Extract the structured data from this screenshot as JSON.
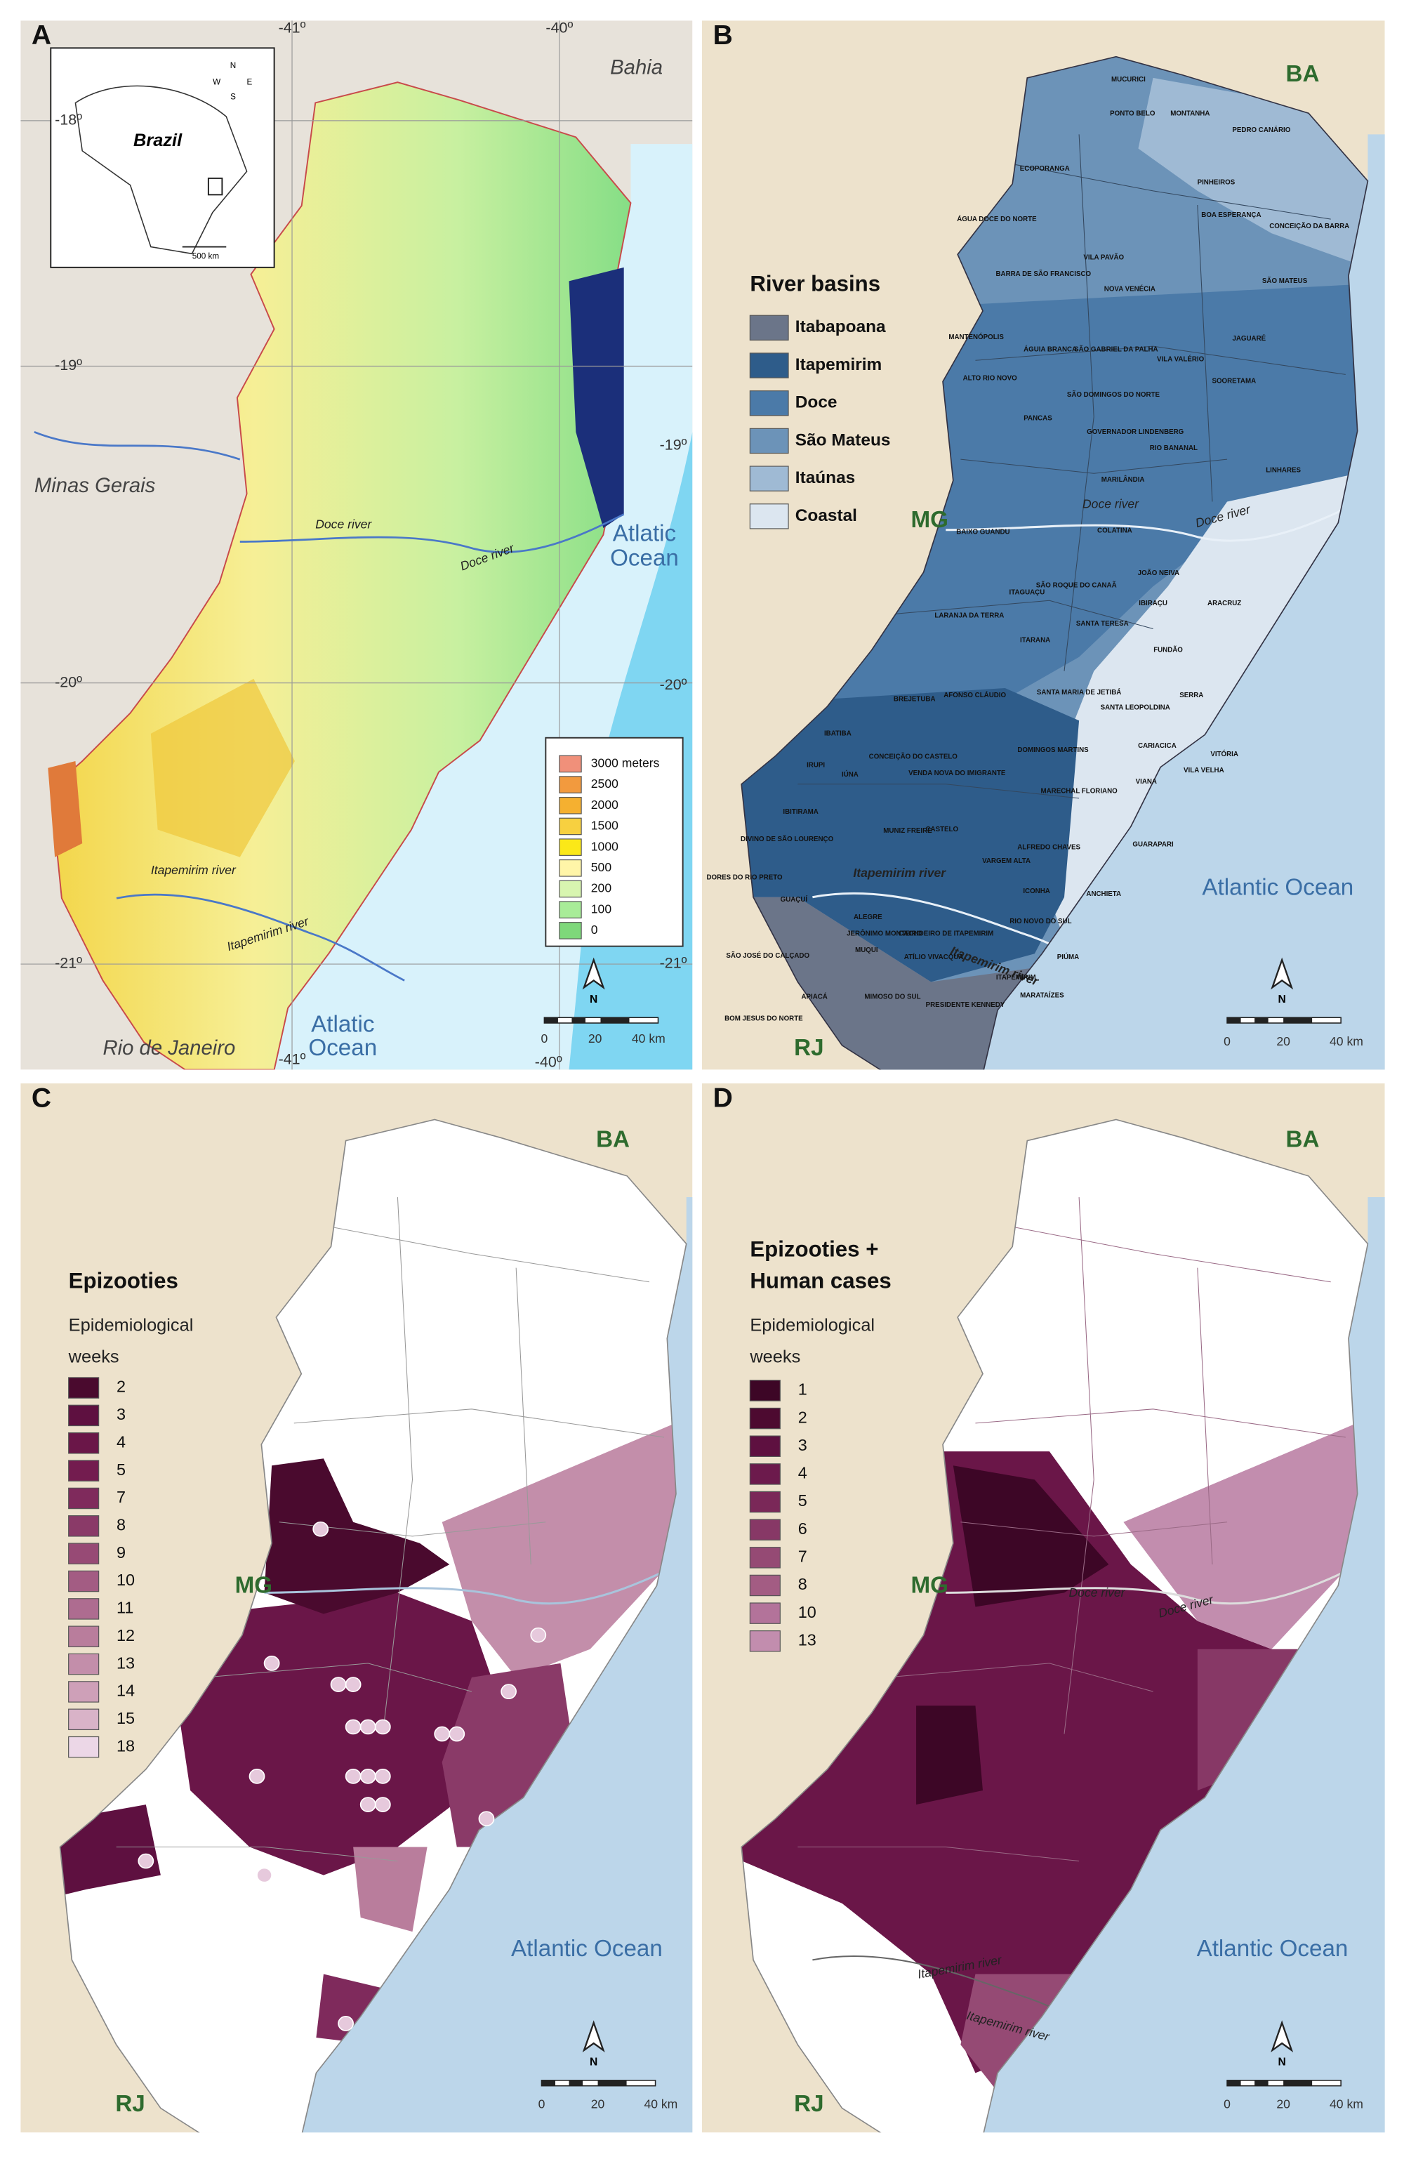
{
  "panels": [
    {
      "label": "A",
      "latitudes": [
        "-18º",
        "-19º",
        "-20º",
        "-21º"
      ],
      "latitudes_right": [
        "-19º",
        "-20º",
        "-21º"
      ],
      "longitudes_top": [
        "-41º",
        "-40º"
      ],
      "longitudes_bottom": [
        "-41º",
        "-40º"
      ],
      "places": [
        "Bahia",
        "Minas Gerais",
        "Rio de Janeiro"
      ],
      "ocean_labels": [
        [
          "Atlatic",
          "Ocean"
        ],
        [
          "Atlatic",
          "Ocean"
        ]
      ],
      "rivers": [
        "Doce river",
        "Doce river",
        "Itapemirim river",
        "Itapemirim river"
      ],
      "inset": {
        "country": "Brazil",
        "scale": "500 km",
        "compass": [
          "N",
          "W",
          "E",
          "S"
        ]
      },
      "legend": {
        "items": [
          {
            "label": "3000 meters",
            "color": "#f0907a"
          },
          {
            "label": "2500",
            "color": "#f29a3e"
          },
          {
            "label": "2000",
            "color": "#f5b030"
          },
          {
            "label": "1500",
            "color": "#f7d040"
          },
          {
            "label": "1000",
            "color": "#fbe818"
          },
          {
            "label": "500",
            "color": "#fff5a8"
          },
          {
            "label": "200",
            "color": "#d8f5b0"
          },
          {
            "label": "100",
            "color": "#a8ec98"
          },
          {
            "label": "0",
            "color": "#7ed87a"
          }
        ]
      },
      "north": "N",
      "scale": [
        "0",
        "20",
        "40 km"
      ]
    },
    {
      "label": "B",
      "places": [
        "BA",
        "MG",
        "RJ"
      ],
      "ocean": "Atlantic Ocean",
      "rivers": [
        "Doce river",
        "Doce river",
        "Itapemirim river",
        "Itapemirim river"
      ],
      "legend": {
        "title": "River basins",
        "items": [
          {
            "label": "Itabapoana",
            "color": "#6b7589"
          },
          {
            "label": "Itapemirim",
            "color": "#2e5c8a"
          },
          {
            "label": "Doce",
            "color": "#4b7aa8"
          },
          {
            "label": "São Mateus",
            "color": "#6c93b8"
          },
          {
            "label": "Itaúnas",
            "color": "#9fbad4"
          },
          {
            "label": "Coastal",
            "color": "#dce6f0"
          }
        ]
      },
      "municipalities": [
        "MUCURICI",
        "PONTO BELO",
        "MONTANHA",
        "PEDRO CANÁRIO",
        "PINHEIROS",
        "ECOPORANGA",
        "ÁGUA DOCE DO NORTE",
        "BOA ESPERANÇA",
        "CONCEIÇÃO DA BARRA",
        "BARRA DE SÃO FRANCISCO",
        "VILA PAVÃO",
        "NOVA VENÉCIA",
        "SÃO MATEUS",
        "MANTENÓPOLIS",
        "ÁGUIA BRANCA",
        "SÃO GABRIEL DA PALHA",
        "VILA VALÉRIO",
        "JAGUARÉ",
        "ALTO RIO NOVO",
        "SÃO DOMINGOS DO NORTE",
        "SOORETAMA",
        "PANCAS",
        "GOVERNADOR LINDENBERG",
        "RIO BANANAL",
        "LINHARES",
        "MARILÂNDIA",
        "BAIXO GUANDU",
        "COLATINA",
        "SÃO ROQUE DO CANAÃ",
        "JOÃO NEIVA",
        "ITAGUAÇU",
        "IBIRAÇU",
        "ARACRUZ",
        "LARANJA DA TERRA",
        "SANTA TERESA",
        "ITARANA",
        "FUNDÃO",
        "AFONSO CLÁUDIO",
        "BREJETUBA",
        "SANTA MARIA DE JETIBÁ",
        "SERRA",
        "SANTA LEOPOLDINA",
        "IBATIBA",
        "CONCEIÇÃO DO CASTELO",
        "VENDA NOVA DO IMIGRANTE",
        "DOMINGOS MARTINS",
        "CARIACICA",
        "VITÓRIA",
        "VILA VELHA",
        "IRUPI",
        "IÚNA",
        "MARECHAL FLORIANO",
        "VIANA",
        "IBITIRAMA",
        "DIVINO DE SÃO LOURENÇO",
        "MUNIZ FREIRE",
        "CASTELO",
        "ALFREDO CHAVES",
        "GUARAPARI",
        "DORES DO RIO PRETO",
        "VARGEM ALTA",
        "GUAÇUÍ",
        "ALEGRE",
        "JERÔNIMO MONTEIRO",
        "CACHOEIRO DE ITAPEMIRIM",
        "ICONHA",
        "ANCHIETA",
        "RIO NOVO DO SUL",
        "PIÚMA",
        "SÃO JOSÉ DO CALÇADO",
        "MUQUI",
        "ATÍLIO VIVACQUA",
        "ITAPEMIRIM",
        "BOM JESUS DO NORTE",
        "APIACÁ",
        "MIMOSO DO SUL",
        "PRESIDENTE KENNEDY",
        "MARATAÍZES"
      ],
      "north": "N",
      "scale": [
        "0",
        "20",
        "40 km"
      ]
    },
    {
      "label": "C",
      "places": [
        "BA",
        "MG",
        "RJ"
      ],
      "ocean": "Atlantic Ocean",
      "legend": {
        "title": [
          "Epizooties"
        ],
        "subtitle": [
          "Epidemiological",
          "weeks"
        ],
        "items": [
          {
            "label": "2",
            "color": "#4a0a2e"
          },
          {
            "label": "3",
            "color": "#5e1040"
          },
          {
            "label": "4",
            "color": "#6a1648"
          },
          {
            "label": "5",
            "color": "#731c4f"
          },
          {
            "label": "7",
            "color": "#7f2a5c"
          },
          {
            "label": "8",
            "color": "#8a3a68"
          },
          {
            "label": "9",
            "color": "#974a75"
          },
          {
            "label": "10",
            "color": "#a35c83"
          },
          {
            "label": "11",
            "color": "#ae6c90"
          },
          {
            "label": "12",
            "color": "#b97d9c"
          },
          {
            "label": "13",
            "color": "#c38eaa"
          },
          {
            "label": "14",
            "color": "#cea0b8"
          },
          {
            "label": "15",
            "color": "#d9b3c8"
          },
          {
            "label": "18",
            "color": "#ecd7e7"
          }
        ]
      },
      "north": "N",
      "scale": [
        "0",
        "20",
        "40 km"
      ]
    },
    {
      "label": "D",
      "places": [
        "BA",
        "MG",
        "RJ"
      ],
      "ocean": "Atlantic Ocean",
      "rivers": [
        "Doce river",
        "Doce river",
        "Itapemirim river",
        "Itapemirim river"
      ],
      "legend": {
        "title": [
          "Epizooties +",
          "Human cases"
        ],
        "subtitle": [
          "Epidemiological",
          "weeks"
        ],
        "items": [
          {
            "label": "1",
            "color": "#3d0626"
          },
          {
            "label": "2",
            "color": "#4d0a30"
          },
          {
            "label": "3",
            "color": "#5e1040"
          },
          {
            "label": "4",
            "color": "#6c1a4c"
          },
          {
            "label": "5",
            "color": "#7a2858"
          },
          {
            "label": "6",
            "color": "#873866"
          },
          {
            "label": "7",
            "color": "#954a74"
          },
          {
            "label": "8",
            "color": "#a35c83"
          },
          {
            "label": "10",
            "color": "#b3739a"
          },
          {
            "label": "13",
            "color": "#c28dae"
          }
        ]
      },
      "north": "N",
      "scale": [
        "0",
        "20",
        "40 km"
      ]
    }
  ]
}
